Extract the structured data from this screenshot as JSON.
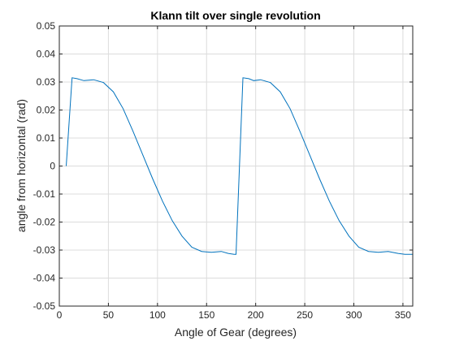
{
  "chart_data": {
    "type": "line",
    "title": "Klann tilt over single revolution",
    "xlabel": "Angle of Gear (degrees)",
    "ylabel": "angle from horizontal (rad)",
    "xlim": [
      0,
      360
    ],
    "ylim": [
      -0.05,
      0.05
    ],
    "xticks": [
      0,
      50,
      100,
      150,
      200,
      250,
      300,
      350
    ],
    "yticks": [
      -0.05,
      -0.04,
      -0.03,
      -0.02,
      -0.01,
      0,
      0.01,
      0.02,
      0.03,
      0.04,
      0.05
    ],
    "xtick_labels": [
      "0",
      "50",
      "100",
      "150",
      "200",
      "250",
      "300",
      "350"
    ],
    "ytick_labels": [
      "-0.05",
      "-0.04",
      "-0.03",
      "-0.02",
      "-0.01",
      "0",
      "0.01",
      "0.02",
      "0.03",
      "0.04",
      "0.05"
    ],
    "grid": true,
    "line_color": "#0072BD",
    "series": [
      {
        "x": [
          7,
          13,
          18,
          25,
          35,
          45,
          55,
          65,
          75,
          85,
          95,
          105,
          115,
          125,
          135,
          145,
          155,
          165,
          172,
          178,
          180,
          187,
          193,
          198,
          205,
          215,
          225,
          235,
          245,
          255,
          265,
          275,
          285,
          295,
          305,
          315,
          325,
          335,
          345,
          352,
          360
        ],
        "y": [
          0,
          0.0315,
          0.0312,
          0.0305,
          0.0308,
          0.0298,
          0.0265,
          0.0205,
          0.0125,
          0.004,
          -0.0045,
          -0.0125,
          -0.0195,
          -0.025,
          -0.029,
          -0.0305,
          -0.0308,
          -0.0305,
          -0.0312,
          -0.0315,
          -0.0315,
          0.0315,
          0.0312,
          0.0305,
          0.0308,
          0.0298,
          0.0265,
          0.0205,
          0.0125,
          0.004,
          -0.0045,
          -0.0125,
          -0.0195,
          -0.025,
          -0.029,
          -0.0305,
          -0.0308,
          -0.0305,
          -0.0312,
          -0.0315,
          -0.0315
        ]
      }
    ]
  }
}
